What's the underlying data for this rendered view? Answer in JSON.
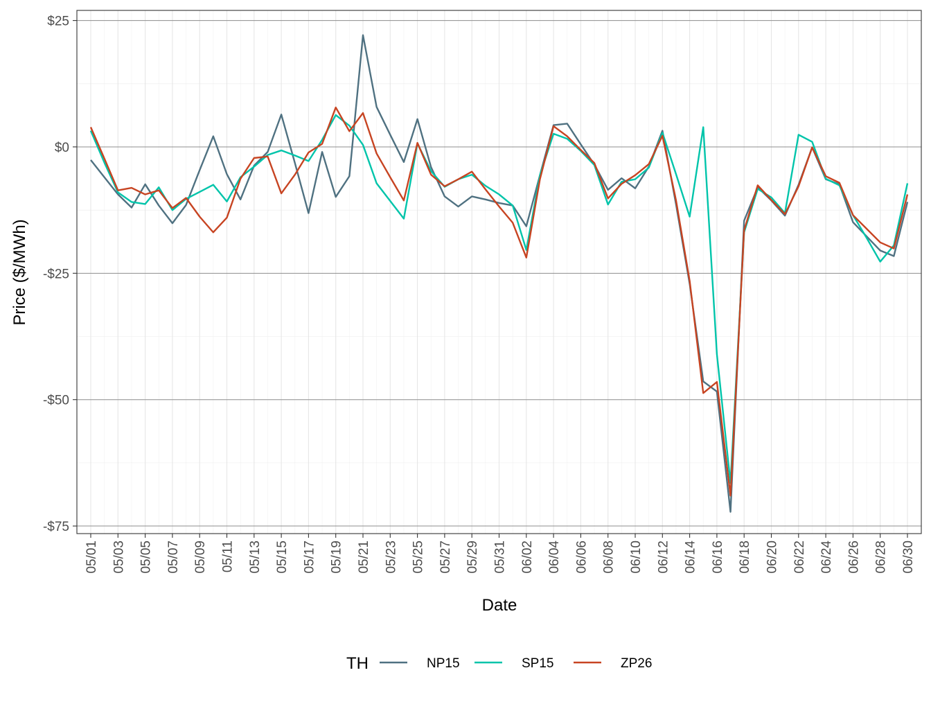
{
  "chart_data": {
    "type": "line",
    "xlabel": "Date",
    "ylabel": "Price ($/MWh)",
    "ylim": [
      -76.5,
      27
    ],
    "y_ticks": [
      25,
      0,
      -25,
      -50,
      -75
    ],
    "y_tick_labels": [
      "$25",
      "$0",
      "-$25",
      "-$50",
      "-$75"
    ],
    "x_tick_labels": [
      "05/01",
      "05/03",
      "05/05",
      "05/07",
      "05/09",
      "05/11",
      "05/13",
      "05/15",
      "05/17",
      "05/19",
      "05/21",
      "05/23",
      "05/25",
      "05/27",
      "05/29",
      "05/31",
      "06/02",
      "06/04",
      "06/06",
      "06/08",
      "06/10",
      "06/12",
      "06/14",
      "06/16",
      "06/18",
      "06/20",
      "06/22",
      "06/24",
      "06/26",
      "06/28",
      "06/30"
    ],
    "x": [
      "05/01",
      "05/02",
      "05/03",
      "05/04",
      "05/05",
      "05/06",
      "05/07",
      "05/08",
      "05/09",
      "05/10",
      "05/11",
      "05/12",
      "05/13",
      "05/14",
      "05/15",
      "05/16",
      "05/17",
      "05/18",
      "05/19",
      "05/20",
      "05/21",
      "05/22",
      "05/23",
      "05/24",
      "05/25",
      "05/26",
      "05/27",
      "05/28",
      "05/29",
      "05/30",
      "05/31",
      "06/01",
      "06/02",
      "06/03",
      "06/04",
      "06/05",
      "06/06",
      "06/07",
      "06/08",
      "06/09",
      "06/10",
      "06/11",
      "06/12",
      "06/13",
      "06/14",
      "06/15",
      "06/16",
      "06/17",
      "06/18",
      "06/19",
      "06/20",
      "06/21",
      "06/22",
      "06/23",
      "06/24",
      "06/25",
      "06/26",
      "06/27",
      "06/28",
      "06/29",
      "06/30"
    ],
    "legend": {
      "title": "TH",
      "position": "bottom"
    },
    "grid": true,
    "series": [
      {
        "name": "NP15",
        "color": "#4f7181",
        "values": [
          -2.6,
          -6,
          -9.4,
          -12,
          -7.4,
          -11.6,
          -15.1,
          -11.5,
          -4.6,
          2.1,
          -5.4,
          -10.4,
          -3.7,
          -1,
          6.4,
          -3.2,
          -13.1,
          -1,
          -9.9,
          -5.8,
          22.1,
          7.9,
          2.4,
          -3,
          5.5,
          -4,
          -9.8,
          -11.8,
          -9.8,
          -10.4,
          -11.1,
          -11.6,
          -15.7,
          -5.6,
          4.3,
          4.6,
          0.5,
          -3.5,
          -8.5,
          -6.2,
          -8.2,
          -3.9,
          3.2,
          -11.4,
          -27.1,
          -46.4,
          -48.4,
          -72.2,
          -14.6,
          -8,
          -10.6,
          -13.6,
          -7.5,
          -0.1,
          -6.4,
          -7.4,
          -14.9,
          -17.7,
          -20.5,
          -21.6,
          -10.9
        ]
      },
      {
        "name": "SP15",
        "color": "#00c4aa",
        "values": [
          3.2,
          -3.1,
          -9,
          -10.9,
          -11.3,
          -8,
          -12.5,
          -10.3,
          -8.9,
          -7.5,
          -10.8,
          -6,
          -3.9,
          -1.6,
          -0.7,
          -1.7,
          -2.8,
          1.4,
          6.3,
          4.2,
          0.4,
          -7.2,
          -10.7,
          -14.2,
          0.7,
          -4.8,
          -7.9,
          -6.4,
          -5.5,
          -7.7,
          -9.4,
          -11.6,
          -20.4,
          -5.6,
          2.6,
          1.6,
          -0.8,
          -3.6,
          -11.4,
          -6.9,
          -6.4,
          -4.1,
          2.8,
          -5.4,
          -13.8,
          3.9,
          -41,
          -66.5,
          -16.9,
          -8.3,
          -10,
          -13.1,
          2.4,
          1,
          -6.3,
          -7.6,
          -13.5,
          -18,
          -22.7,
          -19.5,
          -7.2
        ]
      },
      {
        "name": "ZP26",
        "color": "#c74422",
        "values": [
          3.9,
          -2.3,
          -8.6,
          -8.1,
          -9.4,
          -8.6,
          -12.1,
          -10.1,
          -13.8,
          -16.9,
          -14,
          -6.3,
          -2.2,
          -1.9,
          -9.2,
          -5.5,
          -1.1,
          0.6,
          7.8,
          3.1,
          6.7,
          -1.3,
          -6,
          -10.6,
          0.8,
          -5.5,
          -7.8,
          -6.4,
          -4.9,
          -8.4,
          -11.8,
          -15,
          -21.9,
          -6.4,
          4.1,
          2.1,
          -0.6,
          -3.2,
          -10.2,
          -7.3,
          -5.6,
          -3.4,
          2.2,
          -10.6,
          -26.5,
          -48.7,
          -46.5,
          -69,
          -16.5,
          -7.6,
          -10.5,
          -13.3,
          -7.8,
          -0.1,
          -5.8,
          -7.1,
          -13.5,
          -16.2,
          -18.9,
          -20.1,
          -9.4
        ]
      }
    ]
  }
}
